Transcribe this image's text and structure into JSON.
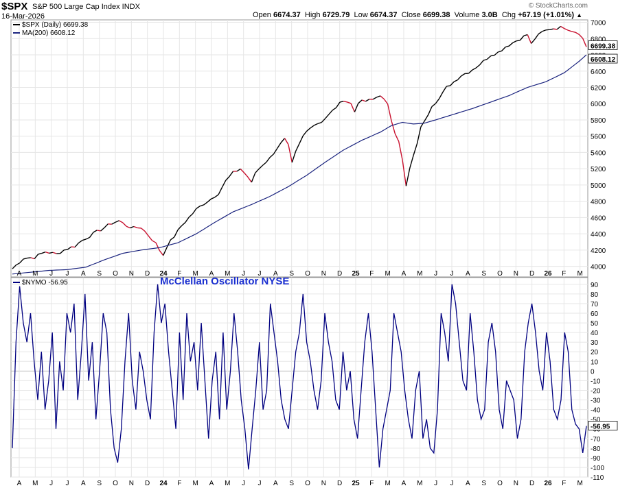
{
  "header": {
    "symbol": "$SPX",
    "description": "S&P 500 Large Cap Index  INDX",
    "date": "16-Mar-2026",
    "open_label": "Open",
    "open": "6674.37",
    "high_label": "High",
    "high": "6729.79",
    "low_label": "Low",
    "low": "6674.37",
    "close_label": "Close",
    "close": "6699.38",
    "volume_label": "Volume",
    "volume": "3.0B",
    "chg_label": "Chg",
    "chg": "+67.19 (+1.01%)",
    "chg_icon": "triangle-up-icon",
    "brand": "StockCharts.com",
    "brand_icon": "copyright-icon"
  },
  "legend": {
    "spx": "$SPX (Daily) 6699.38",
    "ma": "MA(200) 6608.12",
    "nymo": "$NYMO -56.95"
  },
  "osc_title": "McClellan Oscillator NYSE",
  "colors": {
    "up": "#000000",
    "down": "#c8102e",
    "ma": "#1a237e",
    "nymo": "#000080",
    "grid": "#e6e6e6",
    "title": "#1a2fd0"
  },
  "chart_data": [
    {
      "type": "line",
      "title": "S&P 500 Large Cap Index with 200-day moving average",
      "x_ticks": [
        "A",
        "M",
        "J",
        "J",
        "A",
        "S",
        "O",
        "N",
        "D",
        "24",
        "F",
        "M",
        "A",
        "M",
        "J",
        "J",
        "A",
        "S",
        "O",
        "N",
        "D",
        "25",
        "F",
        "M",
        "A",
        "M",
        "J",
        "J",
        "A",
        "S",
        "O",
        "N",
        "D",
        "26",
        "F",
        "M"
      ],
      "ylim": [
        3870,
        7030
      ],
      "y_ticks": [
        4000,
        4200,
        4400,
        4600,
        4800,
        5000,
        5200,
        5400,
        5600,
        5800,
        6000,
        6200,
        6400,
        6600,
        6800,
        7000
      ],
      "last_price_label": "6699.38",
      "last_ma_label": "6608.12",
      "series": [
        {
          "name": "$SPX (Daily)",
          "anchors": [
            [
              0,
              3970
            ],
            [
              3,
              4100
            ],
            [
              6,
              4110
            ],
            [
              9,
              4180
            ],
            [
              12,
              4150
            ],
            [
              14,
              4200
            ],
            [
              17,
              4250
            ],
            [
              19,
              4320
            ],
            [
              22,
              4400
            ],
            [
              24,
              4450
            ],
            [
              27,
              4530
            ],
            [
              29,
              4560
            ],
            [
              31,
              4500
            ],
            [
              33,
              4470
            ],
            [
              35,
              4480
            ],
            [
              37,
              4380
            ],
            [
              38,
              4330
            ],
            [
              39,
              4280
            ],
            [
              40,
              4200
            ],
            [
              41,
              4140
            ],
            [
              42,
              4250
            ],
            [
              44,
              4370
            ],
            [
              46,
              4500
            ],
            [
              48,
              4600
            ],
            [
              50,
              4700
            ],
            [
              52,
              4770
            ],
            [
              54,
              4830
            ],
            [
              56,
              4900
            ],
            [
              58,
              5050
            ],
            [
              60,
              5150
            ],
            [
              62,
              5200
            ],
            [
              64,
              5100
            ],
            [
              65,
              5020
            ],
            [
              66,
              5150
            ],
            [
              68,
              5250
            ],
            [
              70,
              5330
            ],
            [
              72,
              5460
            ],
            [
              74,
              5560
            ],
            [
              75,
              5480
            ],
            [
              76,
              5260
            ],
            [
              77,
              5400
            ],
            [
              79,
              5600
            ],
            [
              81,
              5720
            ],
            [
              83,
              5760
            ],
            [
              84,
              5780
            ],
            [
              86,
              5860
            ],
            [
              88,
              5960
            ],
            [
              89,
              6000
            ],
            [
              90,
              6050
            ],
            [
              92,
              6000
            ],
            [
              93,
              5900
            ],
            [
              94,
              6020
            ],
            [
              96,
              6030
            ],
            [
              98,
              6050
            ],
            [
              100,
              6110
            ],
            [
              102,
              5980
            ],
            [
              103,
              5800
            ],
            [
              104,
              5650
            ],
            [
              105,
              5550
            ],
            [
              106,
              5300
            ],
            [
              107,
              4980
            ],
            [
              108,
              5200
            ],
            [
              109,
              5350
            ],
            [
              110,
              5520
            ],
            [
              111,
              5700
            ],
            [
              112,
              5800
            ],
            [
              113,
              5880
            ],
            [
              114,
              5980
            ],
            [
              116,
              6060
            ],
            [
              118,
              6200
            ],
            [
              120,
              6270
            ],
            [
              122,
              6350
            ],
            [
              124,
              6390
            ],
            [
              126,
              6450
            ],
            [
              128,
              6520
            ],
            [
              130,
              6600
            ],
            [
              132,
              6630
            ],
            [
              134,
              6700
            ],
            [
              136,
              6750
            ],
            [
              138,
              6800
            ],
            [
              140,
              6850
            ],
            [
              141,
              6730
            ],
            [
              142,
              6800
            ],
            [
              144,
              6880
            ],
            [
              146,
              6920
            ],
            [
              148,
              6930
            ],
            [
              150,
              6940
            ],
            [
              152,
              6900
            ],
            [
              154,
              6870
            ],
            [
              155,
              6800
            ],
            [
              156,
              6700
            ]
          ]
        },
        {
          "name": "MA(200)",
          "anchors": [
            [
              0,
              3905
            ],
            [
              10,
              3950
            ],
            [
              15,
              3960
            ],
            [
              20,
              3990
            ],
            [
              25,
              4080
            ],
            [
              30,
              4160
            ],
            [
              35,
              4200
            ],
            [
              40,
              4230
            ],
            [
              45,
              4290
            ],
            [
              50,
              4400
            ],
            [
              55,
              4540
            ],
            [
              60,
              4670
            ],
            [
              65,
              4760
            ],
            [
              70,
              4860
            ],
            [
              75,
              4980
            ],
            [
              80,
              5120
            ],
            [
              85,
              5280
            ],
            [
              90,
              5430
            ],
            [
              95,
              5550
            ],
            [
              100,
              5650
            ],
            [
              103,
              5730
            ],
            [
              106,
              5770
            ],
            [
              109,
              5750
            ],
            [
              112,
              5760
            ],
            [
              115,
              5800
            ],
            [
              120,
              5870
            ],
            [
              125,
              5940
            ],
            [
              130,
              6020
            ],
            [
              135,
              6100
            ],
            [
              140,
              6200
            ],
            [
              145,
              6270
            ],
            [
              150,
              6380
            ],
            [
              154,
              6520
            ],
            [
              156,
              6600
            ]
          ]
        }
      ]
    },
    {
      "type": "line",
      "title": "McClellan Oscillator NYSE",
      "ylim": [
        -110,
        97
      ],
      "y_ticks": [
        90,
        80,
        70,
        60,
        50,
        40,
        30,
        20,
        10,
        0,
        -10,
        -20,
        -30,
        -40,
        -50,
        -60,
        -70,
        -80,
        -90,
        -100,
        -110
      ],
      "last_value_label": "-56.95",
      "series": [
        {
          "name": "$NYMO",
          "values": [
            -80,
            30,
            88,
            50,
            30,
            60,
            10,
            -30,
            20,
            -40,
            -10,
            40,
            -60,
            10,
            -20,
            60,
            40,
            70,
            -30,
            20,
            80,
            -10,
            30,
            -50,
            0,
            60,
            40,
            -40,
            -80,
            -95,
            -60,
            10,
            60,
            -10,
            -40,
            20,
            0,
            -30,
            -50,
            40,
            90,
            50,
            70,
            20,
            -20,
            -60,
            40,
            -30,
            60,
            10,
            30,
            -20,
            50,
            -10,
            -70,
            -10,
            20,
            -50,
            40,
            -40,
            0,
            60,
            20,
            -30,
            -60,
            -102,
            -60,
            -20,
            30,
            -40,
            -20,
            70,
            40,
            10,
            -30,
            -50,
            -60,
            -20,
            20,
            40,
            80,
            30,
            10,
            -20,
            -40,
            -10,
            60,
            30,
            10,
            -30,
            -40,
            20,
            -20,
            0,
            -50,
            -70,
            -20,
            30,
            60,
            20,
            -40,
            -100,
            -60,
            -40,
            -20,
            60,
            40,
            20,
            -20,
            -50,
            -70,
            -20,
            0,
            -70,
            -50,
            -80,
            -85,
            -40,
            60,
            40,
            10,
            90,
            70,
            30,
            -10,
            -20,
            60,
            20,
            -30,
            -50,
            -40,
            30,
            50,
            20,
            -40,
            -60,
            -10,
            -20,
            -30,
            -70,
            -50,
            20,
            50,
            70,
            40,
            0,
            -20,
            40,
            10,
            -40,
            -50,
            -30,
            40,
            20,
            -40,
            -55,
            -60,
            -85,
            -57
          ]
        }
      ]
    }
  ]
}
